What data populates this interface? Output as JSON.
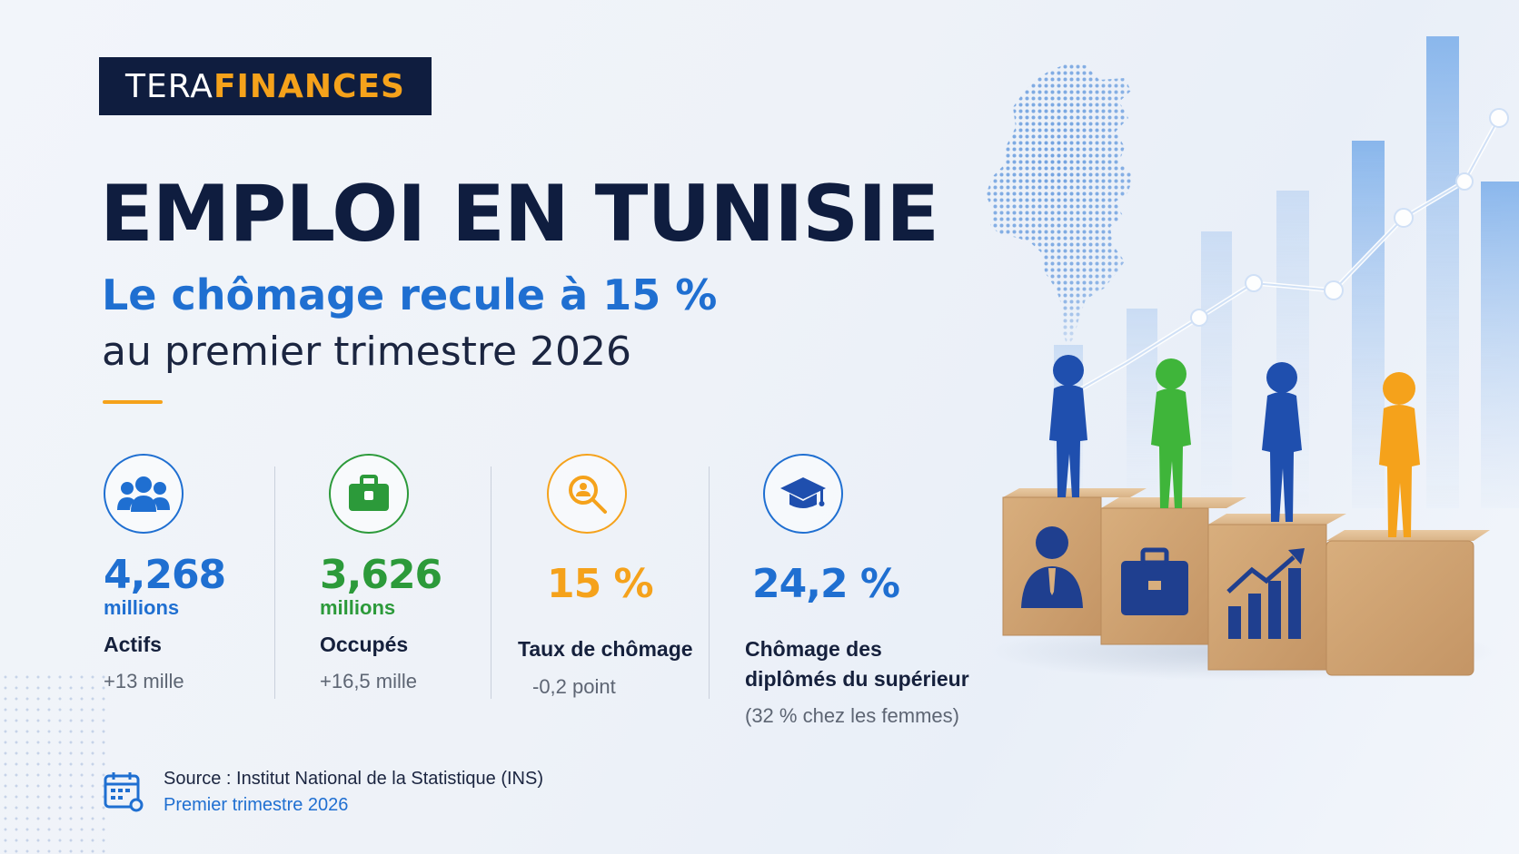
{
  "brand": {
    "logo_part1": "TERA",
    "logo_part2": "FINANCES"
  },
  "header": {
    "title": "EMPLOI EN TUNISIE",
    "subtitle": "Le chômage recule à 15 %",
    "subtitle2": "au premier trimestre 2026"
  },
  "stats": [
    {
      "icon": "people-group-icon",
      "value": "4,268",
      "unit": "millions",
      "label": "Actifs",
      "delta": "+13 mille",
      "color": "#1f6fd1"
    },
    {
      "icon": "briefcase-icon",
      "value": "3,626",
      "unit": "millions",
      "label": "Occupés",
      "delta": "+16,5 mille",
      "color": "#2c9a3a"
    },
    {
      "icon": "magnifier-person-icon",
      "value": "15 %",
      "label": "Taux de chômage",
      "delta": "-0,2 point",
      "color": "#f5a21b"
    },
    {
      "icon": "graduation-cap-icon",
      "value": "24,2 %",
      "label_line1": "Chômage des",
      "label_line2": "diplômés du supérieur",
      "delta": "(32 % chez les femmes)",
      "color": "#1f6fd1"
    }
  ],
  "source": {
    "icon": "calendar-icon",
    "line1": "Source : Institut National de la Statistique (INS)",
    "line2": "Premier trimestre 2026"
  },
  "illustration": {
    "figures": [
      "#1f4fae",
      "#3fb53a",
      "#1f4fae",
      "#f5a21b"
    ],
    "block_icons": [
      "businessman-icon",
      "briefcase-icon",
      "growth-chart-icon",
      "blank-block"
    ]
  },
  "colors": {
    "navy": "#0f1d3f",
    "blue": "#1f6fd1",
    "green": "#2c9a3a",
    "orange": "#f5a21b"
  }
}
